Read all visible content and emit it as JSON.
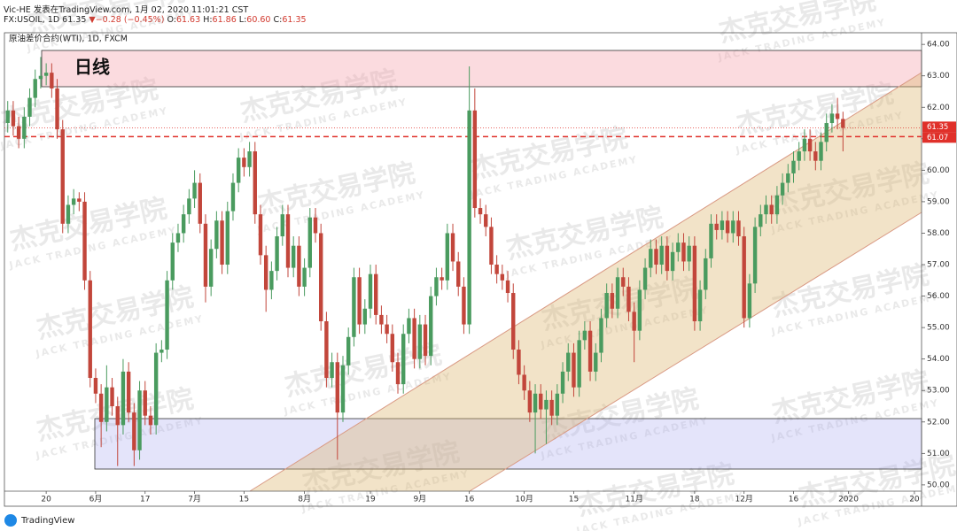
{
  "header": {
    "byline": "Vic-HE 发表在TradingView.com, 1月 02, 2020 11:01:21 CST",
    "symbol": "FX:USOIL, 1D",
    "last": "61.35",
    "arrow": "▼",
    "change": "−0.28 (−0.45%)",
    "ohlc": [
      {
        "label": "O:",
        "value": "61.63"
      },
      {
        "label": "H:",
        "value": "61.86"
      },
      {
        "label": "L:",
        "value": "60.60"
      },
      {
        "label": "C:",
        "value": "61.35"
      }
    ]
  },
  "footer": {
    "brand": "TradingView"
  },
  "watermark": {
    "cn": "杰克交易学院",
    "en": "JACK TRADING ACADEMY"
  },
  "chart_data": {
    "type": "candlestick",
    "title": "原油差价合约(WTI), 1D, FXCM",
    "annotation": "日线",
    "up_color": "#4a9b5f",
    "down_color": "#c2463b",
    "xlim": [
      -0.6,
      166.3
    ],
    "xticks": [
      {
        "value": 7,
        "label": "20"
      },
      {
        "value": 16,
        "label": "6月"
      },
      {
        "value": 25,
        "label": "17"
      },
      {
        "value": 34,
        "label": "7月"
      },
      {
        "value": 43,
        "label": "15"
      },
      {
        "value": 54,
        "label": "8月"
      },
      {
        "value": 66,
        "label": "19"
      },
      {
        "value": 75,
        "label": "9月"
      },
      {
        "value": 84,
        "label": "16"
      },
      {
        "value": 94,
        "label": "10月"
      },
      {
        "value": 103,
        "label": "15"
      },
      {
        "value": 114,
        "label": "11月"
      },
      {
        "value": 125,
        "label": "18"
      },
      {
        "value": 134,
        "label": "12月"
      },
      {
        "value": 143,
        "label": "16"
      },
      {
        "value": 153,
        "label": "2020"
      },
      {
        "value": 165,
        "label": "20"
      }
    ],
    "ylim": [
      49.8,
      64.37
    ],
    "yticks": [
      {
        "value": 50,
        "label": "50.00"
      },
      {
        "value": 51,
        "label": "51.00"
      },
      {
        "value": 52,
        "label": "52.00"
      },
      {
        "value": 53,
        "label": "53.00"
      },
      {
        "value": 54,
        "label": "54.00"
      },
      {
        "value": 55,
        "label": "55.00"
      },
      {
        "value": 56,
        "label": "56.00"
      },
      {
        "value": 57,
        "label": "57.00"
      },
      {
        "value": 58,
        "label": "58.00"
      },
      {
        "value": 59,
        "label": "59.00"
      },
      {
        "value": 60,
        "label": "60.00"
      },
      {
        "value": 61,
        "label": "61.00"
      },
      {
        "value": 62,
        "label": "62.00"
      },
      {
        "value": 63,
        "label": "63.00"
      },
      {
        "value": 64,
        "label": "64.00"
      }
    ],
    "price_lines": [
      61.35,
      61.07
    ],
    "ohlc": [
      [
        61.5,
        62.2,
        61.2,
        61.9
      ],
      [
        61.9,
        62.2,
        61.1,
        61.4
      ],
      [
        61.4,
        61.7,
        60.7,
        61.0
      ],
      [
        61.0,
        62.0,
        60.7,
        61.7
      ],
      [
        61.7,
        62.6,
        61.4,
        62.3
      ],
      [
        62.3,
        63.2,
        62.0,
        62.9
      ],
      [
        62.9,
        63.6,
        62.6,
        63.0
      ],
      [
        63.0,
        63.4,
        62.7,
        63.1
      ],
      [
        63.1,
        63.4,
        62.3,
        62.6
      ],
      [
        62.6,
        62.9,
        61.0,
        61.3
      ],
      [
        61.3,
        61.6,
        58.0,
        58.3
      ],
      [
        58.3,
        59.2,
        58.0,
        58.9
      ],
      [
        58.9,
        59.4,
        58.6,
        59.1
      ],
      [
        59.1,
        59.3,
        58.7,
        59.0
      ],
      [
        59.0,
        59.3,
        56.2,
        56.5
      ],
      [
        56.5,
        56.8,
        53.1,
        53.4
      ],
      [
        53.4,
        53.7,
        52.6,
        52.9
      ],
      [
        52.9,
        53.2,
        51.2,
        52.0
      ],
      [
        52.0,
        53.8,
        51.7,
        53.1
      ],
      [
        53.1,
        53.4,
        52.2,
        52.5
      ],
      [
        52.5,
        52.8,
        50.6,
        51.9
      ],
      [
        51.9,
        54.0,
        51.6,
        53.6
      ],
      [
        53.6,
        53.9,
        52.0,
        52.3
      ],
      [
        52.3,
        52.6,
        50.6,
        51.1
      ],
      [
        51.1,
        53.3,
        50.8,
        53.0
      ],
      [
        53.0,
        53.3,
        51.9,
        52.2
      ],
      [
        52.2,
        52.5,
        51.6,
        51.9
      ],
      [
        51.9,
        54.5,
        51.6,
        54.2
      ],
      [
        54.2,
        54.6,
        53.9,
        54.3
      ],
      [
        54.3,
        56.8,
        54.0,
        56.5
      ],
      [
        56.5,
        58.0,
        56.2,
        57.7
      ],
      [
        57.7,
        58.3,
        57.4,
        58.0
      ],
      [
        58.0,
        58.9,
        57.7,
        58.6
      ],
      [
        58.6,
        59.4,
        58.3,
        59.1
      ],
      [
        59.1,
        60.0,
        58.8,
        59.6
      ],
      [
        59.6,
        59.9,
        58.0,
        58.3
      ],
      [
        58.3,
        58.6,
        55.8,
        56.3
      ],
      [
        56.3,
        57.8,
        56.0,
        57.5
      ],
      [
        57.5,
        58.7,
        57.2,
        58.4
      ],
      [
        58.4,
        58.7,
        56.7,
        57.0
      ],
      [
        57.0,
        59.0,
        56.7,
        58.7
      ],
      [
        58.7,
        59.9,
        58.4,
        59.6
      ],
      [
        59.6,
        60.7,
        59.3,
        60.4
      ],
      [
        60.4,
        60.7,
        59.8,
        60.1
      ],
      [
        60.1,
        60.9,
        59.8,
        60.6
      ],
      [
        60.6,
        60.9,
        58.3,
        58.6
      ],
      [
        58.6,
        58.9,
        57.0,
        57.3
      ],
      [
        57.3,
        57.6,
        55.5,
        56.2
      ],
      [
        56.2,
        57.1,
        55.9,
        56.8
      ],
      [
        56.8,
        58.2,
        56.5,
        57.9
      ],
      [
        57.9,
        58.9,
        57.6,
        58.6
      ],
      [
        58.6,
        58.9,
        56.6,
        56.9
      ],
      [
        56.9,
        57.9,
        56.6,
        57.6
      ],
      [
        57.6,
        57.9,
        56.0,
        56.3
      ],
      [
        56.3,
        57.2,
        56.0,
        56.9
      ],
      [
        56.9,
        58.8,
        56.6,
        58.5
      ],
      [
        58.5,
        58.8,
        57.7,
        58.0
      ],
      [
        58.0,
        58.3,
        54.9,
        55.2
      ],
      [
        55.2,
        55.5,
        53.1,
        53.4
      ],
      [
        53.4,
        54.2,
        53.1,
        53.9
      ],
      [
        53.9,
        54.2,
        50.8,
        52.3
      ],
      [
        52.3,
        54.1,
        52.0,
        53.8
      ],
      [
        53.8,
        55.0,
        53.5,
        54.7
      ],
      [
        54.7,
        56.9,
        54.4,
        56.6
      ],
      [
        56.6,
        56.9,
        54.8,
        55.1
      ],
      [
        55.1,
        55.9,
        54.8,
        55.6
      ],
      [
        55.6,
        57.0,
        55.3,
        56.7
      ],
      [
        56.7,
        57.0,
        55.1,
        55.4
      ],
      [
        55.4,
        55.7,
        54.8,
        55.1
      ],
      [
        55.1,
        55.4,
        54.5,
        54.8
      ],
      [
        54.8,
        55.1,
        53.6,
        53.9
      ],
      [
        53.9,
        54.2,
        52.9,
        53.2
      ],
      [
        53.2,
        55.1,
        52.9,
        54.8
      ],
      [
        54.8,
        55.6,
        54.5,
        55.3
      ],
      [
        55.3,
        55.6,
        53.7,
        54.0
      ],
      [
        54.0,
        55.4,
        53.7,
        55.1
      ],
      [
        55.1,
        55.4,
        53.8,
        54.1
      ],
      [
        54.1,
        56.3,
        53.8,
        56.0
      ],
      [
        56.0,
        56.9,
        55.7,
        56.6
      ],
      [
        56.6,
        56.9,
        56.2,
        56.5
      ],
      [
        56.5,
        58.3,
        56.2,
        58.0
      ],
      [
        58.0,
        58.3,
        56.8,
        57.1
      ],
      [
        57.1,
        57.4,
        56.0,
        56.3
      ],
      [
        56.3,
        56.6,
        54.8,
        55.1
      ],
      [
        55.1,
        63.3,
        54.8,
        61.9
      ],
      [
        61.9,
        62.6,
        58.5,
        58.8
      ],
      [
        58.8,
        59.1,
        58.3,
        58.6
      ],
      [
        58.6,
        58.9,
        57.9,
        58.2
      ],
      [
        58.2,
        58.5,
        56.7,
        57.0
      ],
      [
        57.0,
        57.3,
        56.4,
        56.7
      ],
      [
        56.7,
        57.0,
        56.2,
        56.5
      ],
      [
        56.5,
        56.8,
        55.8,
        56.1
      ],
      [
        56.1,
        56.4,
        54.0,
        54.3
      ],
      [
        54.3,
        54.6,
        53.2,
        53.5
      ],
      [
        53.5,
        53.8,
        52.7,
        53.0
      ],
      [
        53.0,
        53.3,
        52.0,
        52.3
      ],
      [
        52.3,
        53.2,
        51.0,
        52.9
      ],
      [
        52.9,
        53.2,
        52.1,
        52.4
      ],
      [
        52.4,
        53.0,
        51.3,
        52.7
      ],
      [
        52.7,
        53.0,
        51.9,
        52.2
      ],
      [
        52.2,
        53.2,
        51.9,
        52.9
      ],
      [
        52.9,
        53.9,
        52.6,
        53.6
      ],
      [
        53.6,
        54.5,
        53.3,
        54.2
      ],
      [
        54.2,
        54.5,
        52.8,
        53.1
      ],
      [
        53.1,
        54.9,
        52.8,
        54.6
      ],
      [
        54.6,
        55.2,
        54.3,
        54.9
      ],
      [
        54.9,
        55.2,
        53.3,
        53.6
      ],
      [
        53.6,
        54.5,
        53.3,
        54.2
      ],
      [
        54.2,
        55.6,
        53.9,
        55.3
      ],
      [
        55.3,
        56.4,
        55.0,
        56.1
      ],
      [
        56.1,
        56.4,
        55.3,
        55.6
      ],
      [
        55.6,
        56.9,
        55.3,
        56.6
      ],
      [
        56.6,
        56.9,
        56.0,
        56.3
      ],
      [
        56.3,
        56.6,
        55.2,
        55.5
      ],
      [
        55.5,
        55.8,
        53.9,
        54.9
      ],
      [
        54.9,
        56.5,
        54.6,
        56.2
      ],
      [
        56.2,
        57.2,
        55.9,
        56.9
      ],
      [
        56.9,
        57.8,
        56.6,
        57.5
      ],
      [
        57.5,
        57.8,
        56.7,
        57.0
      ],
      [
        57.0,
        57.9,
        56.7,
        57.6
      ],
      [
        57.6,
        57.9,
        56.5,
        56.8
      ],
      [
        56.8,
        57.7,
        56.5,
        57.4
      ],
      [
        57.4,
        58.0,
        57.1,
        57.7
      ],
      [
        57.7,
        58.0,
        56.8,
        57.1
      ],
      [
        57.1,
        57.9,
        56.8,
        57.6
      ],
      [
        57.6,
        57.9,
        54.9,
        55.2
      ],
      [
        55.2,
        56.5,
        54.9,
        56.2
      ],
      [
        56.2,
        57.5,
        55.9,
        57.2
      ],
      [
        57.2,
        58.6,
        56.9,
        58.3
      ],
      [
        58.3,
        58.6,
        57.8,
        58.1
      ],
      [
        58.1,
        58.7,
        57.8,
        58.4
      ],
      [
        58.4,
        58.7,
        57.7,
        58.0
      ],
      [
        58.0,
        58.7,
        57.7,
        58.4
      ],
      [
        58.4,
        58.7,
        57.6,
        57.9
      ],
      [
        57.9,
        58.2,
        55.0,
        55.3
      ],
      [
        55.3,
        56.7,
        55.0,
        56.4
      ],
      [
        56.4,
        58.5,
        56.1,
        58.2
      ],
      [
        58.2,
        58.9,
        57.9,
        58.6
      ],
      [
        58.6,
        59.2,
        58.3,
        58.9
      ],
      [
        58.9,
        59.2,
        58.3,
        58.6
      ],
      [
        58.6,
        59.5,
        58.3,
        59.2
      ],
      [
        59.2,
        59.9,
        58.9,
        59.6
      ],
      [
        59.6,
        60.2,
        59.3,
        59.9
      ],
      [
        59.9,
        60.6,
        59.6,
        60.3
      ],
      [
        60.3,
        60.9,
        60.0,
        60.6
      ],
      [
        60.6,
        61.3,
        60.3,
        61.0
      ],
      [
        61.0,
        61.3,
        60.3,
        60.6
      ],
      [
        60.6,
        60.9,
        60.0,
        60.3
      ],
      [
        60.3,
        61.2,
        60.0,
        60.9
      ],
      [
        60.9,
        61.8,
        60.6,
        61.5
      ],
      [
        61.5,
        62.1,
        61.2,
        61.8
      ],
      [
        61.8,
        62.3,
        61.3,
        61.63
      ],
      [
        61.63,
        61.86,
        60.6,
        61.35
      ]
    ]
  }
}
